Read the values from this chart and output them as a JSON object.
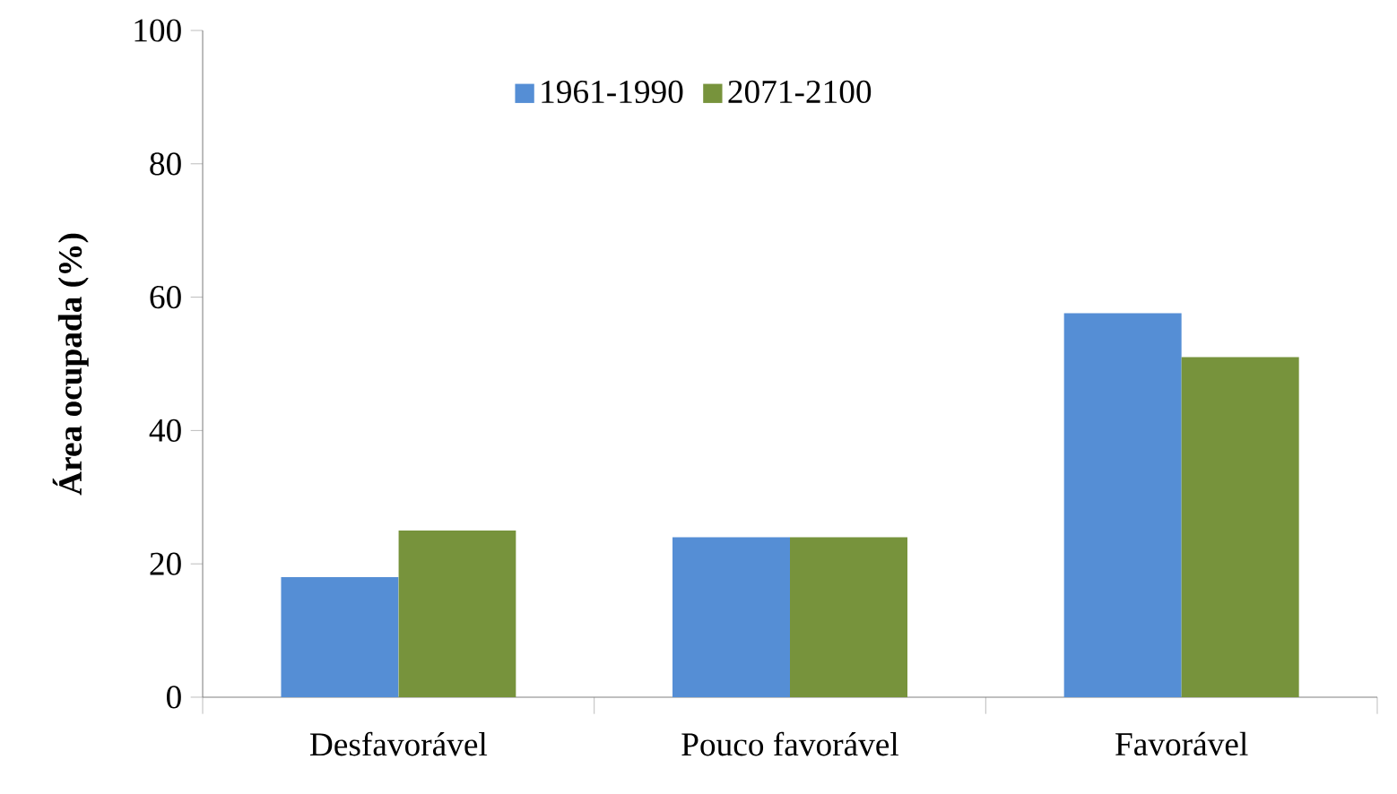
{
  "chart_data": {
    "type": "bar",
    "ylabel": "**Área ocupada (%)**",
    "categories": [
      "Desfavorável",
      "Pouco favorável",
      "Favorável"
    ],
    "series": [
      {
        "name": "1961-1990",
        "color": "#558ed5",
        "values": [
          18,
          24,
          57.6
        ]
      },
      {
        "name": "2071-2100",
        "color": "#77933c",
        "values": [
          25,
          24,
          51
        ]
      }
    ],
    "ylim": [
      0,
      100
    ],
    "yticks": [
      0,
      20,
      40,
      60,
      80,
      100
    ],
    "grid": false,
    "legend": "top"
  }
}
